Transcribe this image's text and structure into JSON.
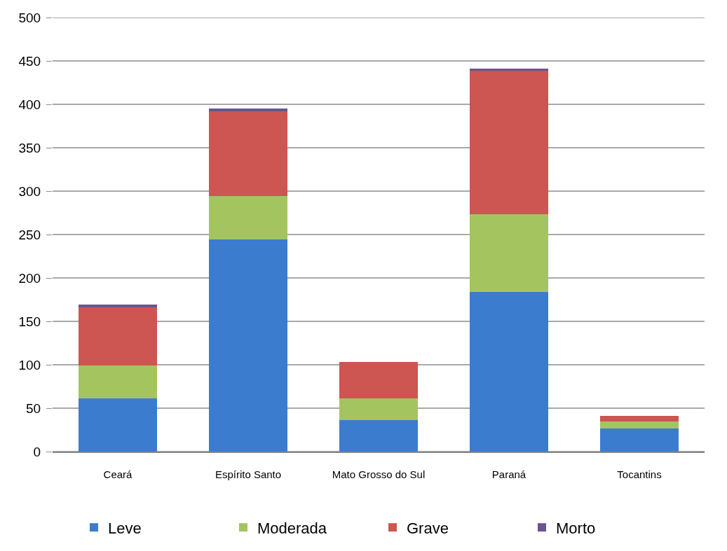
{
  "chart_data": {
    "type": "bar",
    "stacked": true,
    "categories": [
      "Ceará",
      "Espírito Santo",
      "Mato Grosso do Sul",
      "Paraná",
      "Tocantins"
    ],
    "series": [
      {
        "name": "Leve",
        "color": "#3c7ccf",
        "values": [
          61,
          244,
          36,
          184,
          27
        ]
      },
      {
        "name": "Moderada",
        "color": "#a4c45f",
        "values": [
          38,
          50,
          25,
          89,
          8
        ]
      },
      {
        "name": "Grave",
        "color": "#cd5552",
        "values": [
          67,
          98,
          42,
          166,
          6
        ]
      },
      {
        "name": "Morto",
        "color": "#6a5590",
        "values": [
          3,
          3,
          null,
          2,
          null
        ]
      }
    ],
    "ylim": [
      0,
      500
    ],
    "yticks": [
      0,
      50,
      100,
      150,
      200,
      250,
      300,
      350,
      400,
      450,
      500
    ],
    "grid": "y",
    "legend": "bottom"
  }
}
